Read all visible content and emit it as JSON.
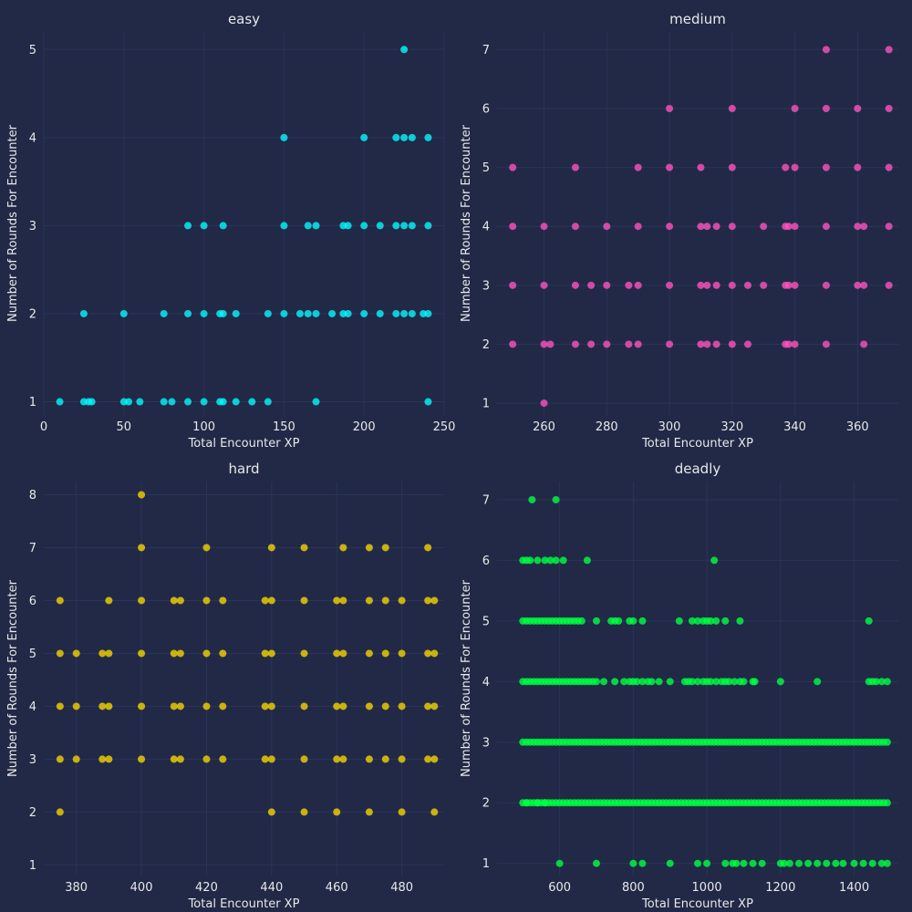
{
  "colors": {
    "background": "#212946",
    "grid": "#2A3459",
    "text": "#E8E8E8",
    "axis_label": "#E8E8E8",
    "easy": "#08F7FE",
    "medium": "#FE53BB",
    "hard": "#F5D300",
    "deadly": "#00FF41"
  },
  "chart_data": [
    {
      "type": "scatter",
      "title": "easy",
      "xlabel": "Total Encounter XP",
      "ylabel": "Number of Rounds For Encounter",
      "xlim": [
        0,
        250
      ],
      "ylim": [
        0.85,
        5.2
      ],
      "xticks": [
        0,
        50,
        100,
        150,
        200,
        250
      ],
      "yticks": [
        1,
        2,
        3,
        4,
        5
      ],
      "grid": true,
      "color_key": "easy",
      "points": [
        [
          10,
          1
        ],
        [
          25,
          1
        ],
        [
          28,
          1
        ],
        [
          30,
          1
        ],
        [
          50,
          1
        ],
        [
          53,
          1
        ],
        [
          60,
          1
        ],
        [
          75,
          1
        ],
        [
          80,
          1
        ],
        [
          90,
          1
        ],
        [
          100,
          1
        ],
        [
          110,
          1
        ],
        [
          112,
          1
        ],
        [
          120,
          1
        ],
        [
          130,
          1
        ],
        [
          140,
          1
        ],
        [
          170,
          1
        ],
        [
          240,
          1
        ],
        [
          25,
          2
        ],
        [
          50,
          2
        ],
        [
          75,
          2
        ],
        [
          90,
          2
        ],
        [
          100,
          2
        ],
        [
          110,
          2
        ],
        [
          112,
          2
        ],
        [
          120,
          2
        ],
        [
          140,
          2
        ],
        [
          150,
          2
        ],
        [
          160,
          2
        ],
        [
          165,
          2
        ],
        [
          170,
          2
        ],
        [
          180,
          2
        ],
        [
          187,
          2
        ],
        [
          190,
          2
        ],
        [
          200,
          2
        ],
        [
          210,
          2
        ],
        [
          220,
          2
        ],
        [
          225,
          2
        ],
        [
          230,
          2
        ],
        [
          237,
          2
        ],
        [
          240,
          2
        ],
        [
          90,
          3
        ],
        [
          100,
          3
        ],
        [
          112,
          3
        ],
        [
          150,
          3
        ],
        [
          165,
          3
        ],
        [
          170,
          3
        ],
        [
          187,
          3
        ],
        [
          190,
          3
        ],
        [
          200,
          3
        ],
        [
          210,
          3
        ],
        [
          220,
          3
        ],
        [
          225,
          3
        ],
        [
          230,
          3
        ],
        [
          240,
          3
        ],
        [
          150,
          4
        ],
        [
          200,
          4
        ],
        [
          220,
          4
        ],
        [
          225,
          4
        ],
        [
          230,
          4
        ],
        [
          240,
          4
        ],
        [
          225,
          5
        ]
      ]
    },
    {
      "type": "scatter",
      "title": "medium",
      "xlabel": "Total Encounter XP",
      "ylabel": "Number of Rounds For Encounter",
      "xlim": [
        245,
        373
      ],
      "ylim": [
        0.8,
        7.3
      ],
      "xticks": [
        260,
        280,
        300,
        320,
        340,
        360
      ],
      "yticks": [
        1,
        2,
        3,
        4,
        5,
        6,
        7
      ],
      "grid": true,
      "color_key": "medium",
      "points": [
        [
          260,
          1
        ],
        [
          250,
          2
        ],
        [
          260,
          2
        ],
        [
          262,
          2
        ],
        [
          270,
          2
        ],
        [
          275,
          2
        ],
        [
          280,
          2
        ],
        [
          287,
          2
        ],
        [
          290,
          2
        ],
        [
          300,
          2
        ],
        [
          310,
          2
        ],
        [
          312,
          2
        ],
        [
          315,
          2
        ],
        [
          320,
          2
        ],
        [
          325,
          2
        ],
        [
          337,
          2
        ],
        [
          338,
          2
        ],
        [
          340,
          2
        ],
        [
          350,
          2
        ],
        [
          362,
          2
        ],
        [
          250,
          3
        ],
        [
          260,
          3
        ],
        [
          270,
          3
        ],
        [
          275,
          3
        ],
        [
          280,
          3
        ],
        [
          287,
          3
        ],
        [
          290,
          3
        ],
        [
          300,
          3
        ],
        [
          310,
          3
        ],
        [
          312,
          3
        ],
        [
          315,
          3
        ],
        [
          320,
          3
        ],
        [
          325,
          3
        ],
        [
          330,
          3
        ],
        [
          337,
          3
        ],
        [
          338,
          3
        ],
        [
          340,
          3
        ],
        [
          350,
          3
        ],
        [
          360,
          3
        ],
        [
          362,
          3
        ],
        [
          370,
          3
        ],
        [
          250,
          4
        ],
        [
          260,
          4
        ],
        [
          270,
          4
        ],
        [
          280,
          4
        ],
        [
          290,
          4
        ],
        [
          300,
          4
        ],
        [
          310,
          4
        ],
        [
          312,
          4
        ],
        [
          315,
          4
        ],
        [
          320,
          4
        ],
        [
          330,
          4
        ],
        [
          337,
          4
        ],
        [
          338,
          4
        ],
        [
          340,
          4
        ],
        [
          350,
          4
        ],
        [
          360,
          4
        ],
        [
          362,
          4
        ],
        [
          370,
          4
        ],
        [
          250,
          5
        ],
        [
          270,
          5
        ],
        [
          290,
          5
        ],
        [
          300,
          5
        ],
        [
          310,
          5
        ],
        [
          320,
          5
        ],
        [
          337,
          5
        ],
        [
          340,
          5
        ],
        [
          350,
          5
        ],
        [
          360,
          5
        ],
        [
          370,
          5
        ],
        [
          300,
          6
        ],
        [
          320,
          6
        ],
        [
          340,
          6
        ],
        [
          350,
          6
        ],
        [
          360,
          6
        ],
        [
          370,
          6
        ],
        [
          350,
          7
        ],
        [
          370,
          7
        ]
      ]
    },
    {
      "type": "scatter",
      "title": "hard",
      "xlabel": "Total Encounter XP",
      "ylabel": "Number of Rounds For Encounter",
      "xlim": [
        370,
        493
      ],
      "ylim": [
        0.8,
        8.25
      ],
      "xticks": [
        380,
        400,
        420,
        440,
        460,
        480
      ],
      "yticks": [
        1,
        2,
        3,
        4,
        5,
        6,
        7,
        8
      ],
      "grid": true,
      "color_key": "hard",
      "points": [
        [
          375,
          2
        ],
        [
          440,
          2
        ],
        [
          450,
          2
        ],
        [
          460,
          2
        ],
        [
          470,
          2
        ],
        [
          480,
          2
        ],
        [
          490,
          2
        ],
        [
          375,
          3
        ],
        [
          380,
          3
        ],
        [
          388,
          3
        ],
        [
          390,
          3
        ],
        [
          400,
          3
        ],
        [
          410,
          3
        ],
        [
          412,
          3
        ],
        [
          420,
          3
        ],
        [
          425,
          3
        ],
        [
          438,
          3
        ],
        [
          440,
          3
        ],
        [
          450,
          3
        ],
        [
          460,
          3
        ],
        [
          462,
          3
        ],
        [
          470,
          3
        ],
        [
          475,
          3
        ],
        [
          480,
          3
        ],
        [
          488,
          3
        ],
        [
          490,
          3
        ],
        [
          375,
          4
        ],
        [
          380,
          4
        ],
        [
          388,
          4
        ],
        [
          390,
          4
        ],
        [
          400,
          4
        ],
        [
          410,
          4
        ],
        [
          412,
          4
        ],
        [
          420,
          4
        ],
        [
          425,
          4
        ],
        [
          438,
          4
        ],
        [
          440,
          4
        ],
        [
          450,
          4
        ],
        [
          460,
          4
        ],
        [
          462,
          4
        ],
        [
          470,
          4
        ],
        [
          475,
          4
        ],
        [
          480,
          4
        ],
        [
          488,
          4
        ],
        [
          490,
          4
        ],
        [
          375,
          5
        ],
        [
          380,
          5
        ],
        [
          388,
          5
        ],
        [
          390,
          5
        ],
        [
          400,
          5
        ],
        [
          410,
          5
        ],
        [
          412,
          5
        ],
        [
          420,
          5
        ],
        [
          425,
          5
        ],
        [
          438,
          5
        ],
        [
          440,
          5
        ],
        [
          450,
          5
        ],
        [
          460,
          5
        ],
        [
          462,
          5
        ],
        [
          470,
          5
        ],
        [
          475,
          5
        ],
        [
          480,
          5
        ],
        [
          488,
          5
        ],
        [
          490,
          5
        ],
        [
          375,
          6
        ],
        [
          390,
          6
        ],
        [
          400,
          6
        ],
        [
          410,
          6
        ],
        [
          412,
          6
        ],
        [
          420,
          6
        ],
        [
          425,
          6
        ],
        [
          438,
          6
        ],
        [
          440,
          6
        ],
        [
          450,
          6
        ],
        [
          460,
          6
        ],
        [
          462,
          6
        ],
        [
          470,
          6
        ],
        [
          475,
          6
        ],
        [
          480,
          6
        ],
        [
          488,
          6
        ],
        [
          490,
          6
        ],
        [
          400,
          7
        ],
        [
          420,
          7
        ],
        [
          440,
          7
        ],
        [
          450,
          7
        ],
        [
          462,
          7
        ],
        [
          470,
          7
        ],
        [
          475,
          7
        ],
        [
          488,
          7
        ],
        [
          400,
          8
        ]
      ]
    },
    {
      "type": "scatter",
      "title": "deadly",
      "xlabel": "Total Encounter XP",
      "ylabel": "Number of Rounds For Encounter",
      "xlim": [
        430,
        1520
      ],
      "ylim": [
        0.8,
        7.3
      ],
      "xticks": [
        600,
        800,
        1000,
        1200,
        1400
      ],
      "yticks": [
        1,
        2,
        3,
        4,
        5,
        6,
        7
      ],
      "grid": true,
      "color_key": "deadly",
      "rows": [
        {
          "y": 1,
          "pts": [
            600,
            700,
            800,
            825,
            900,
            975,
            1000,
            1050,
            1070,
            1080,
            1100,
            1125,
            1150,
            1200,
            1210,
            1225,
            1250,
            1275,
            1300,
            1325,
            1350,
            1370,
            1400,
            1425,
            1450,
            1475,
            1490
          ]
        },
        {
          "y": 2,
          "start": 500,
          "end": 1490,
          "step": 10,
          "extra": [
            510,
            540,
            560
          ]
        },
        {
          "y": 3,
          "start": 500,
          "end": 1490,
          "step": 10
        },
        {
          "y": 4,
          "pts": [
            500,
            510,
            520,
            530,
            540,
            550,
            560,
            570,
            580,
            590,
            600,
            610,
            620,
            630,
            640,
            650,
            660,
            670,
            680,
            690,
            700,
            720,
            750,
            775,
            790,
            800,
            810,
            825,
            840,
            850,
            870,
            900,
            940,
            950,
            960,
            975,
            990,
            1000,
            1010,
            1025,
            1040,
            1050,
            1060,
            1075,
            1090,
            1100,
            1125,
            1130,
            1200,
            1300,
            1440,
            1450,
            1460,
            1475,
            1490
          ]
        },
        {
          "y": 5,
          "pts": [
            500,
            510,
            520,
            530,
            540,
            550,
            560,
            570,
            580,
            590,
            600,
            610,
            620,
            630,
            640,
            650,
            660,
            700,
            740,
            750,
            760,
            790,
            800,
            825,
            925,
            960,
            975,
            990,
            1000,
            1010,
            1025,
            1050,
            1090,
            1440
          ]
        },
        {
          "y": 6,
          "pts": [
            500,
            510,
            520,
            540,
            560,
            575,
            590,
            610,
            675,
            1020
          ]
        },
        {
          "y": 7,
          "pts": [
            525,
            590
          ]
        }
      ]
    }
  ]
}
